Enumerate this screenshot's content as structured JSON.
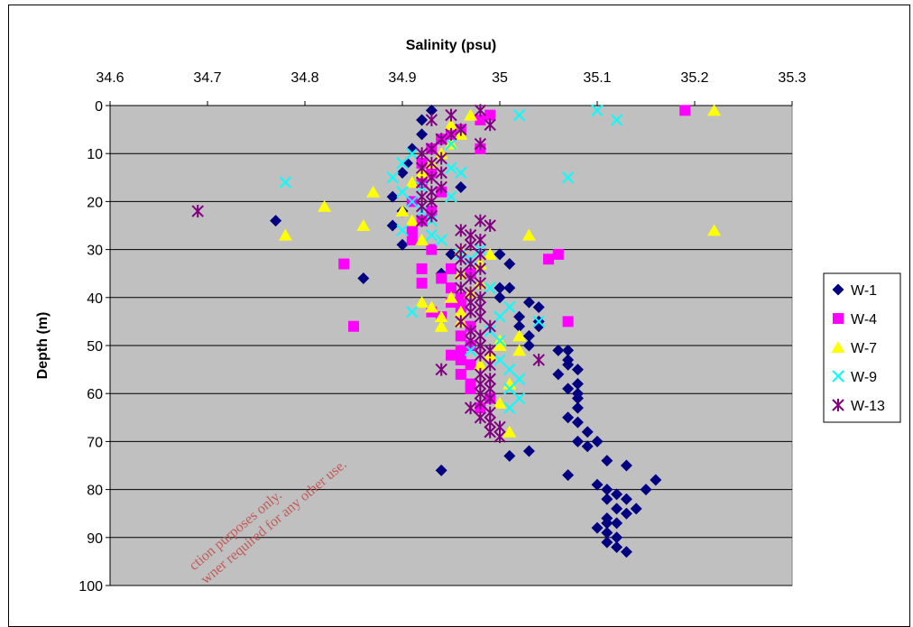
{
  "chart_data": {
    "type": "scatter",
    "title": "Salinity (psu)",
    "xlabel": "Salinity (psu)",
    "ylabel": "Depth (m)",
    "xlim": [
      34.6,
      35.3
    ],
    "ylim": [
      0,
      100
    ],
    "y_inverted": true,
    "x_axis_position": "top",
    "x_ticks": [
      "34.6",
      "34.7",
      "34.8",
      "34.9",
      "35",
      "35.1",
      "35.2",
      "35.3"
    ],
    "y_ticks": [
      "0",
      "10",
      "20",
      "30",
      "40",
      "50",
      "60",
      "70",
      "80",
      "90",
      "100"
    ],
    "grid": "horizontal",
    "plot_background": "#c0c0c0",
    "legend_position": "right",
    "series": [
      {
        "name": "W-1",
        "marker": "diamond",
        "color": "#000080",
        "points": [
          [
            34.93,
            1
          ],
          [
            34.92,
            3
          ],
          [
            34.92,
            6
          ],
          [
            34.91,
            9
          ],
          [
            34.905,
            12
          ],
          [
            34.9,
            14
          ],
          [
            34.96,
            17
          ],
          [
            34.89,
            19
          ],
          [
            34.9,
            22
          ],
          [
            34.89,
            25
          ],
          [
            34.77,
            24
          ],
          [
            34.9,
            29
          ],
          [
            34.95,
            31
          ],
          [
            35.0,
            31
          ],
          [
            35.01,
            33
          ],
          [
            34.94,
            35
          ],
          [
            34.86,
            36
          ],
          [
            35.0,
            38
          ],
          [
            35.01,
            38
          ],
          [
            35.03,
            41
          ],
          [
            35.0,
            40
          ],
          [
            35.04,
            42
          ],
          [
            35.02,
            44
          ],
          [
            35.04,
            45
          ],
          [
            35.04,
            46
          ],
          [
            35.02,
            46
          ],
          [
            35.03,
            48
          ],
          [
            35.03,
            50
          ],
          [
            35.06,
            51
          ],
          [
            35.07,
            51
          ],
          [
            35.07,
            53
          ],
          [
            35.07,
            54
          ],
          [
            35.08,
            55
          ],
          [
            35.06,
            56
          ],
          [
            35.08,
            58
          ],
          [
            35.07,
            59
          ],
          [
            35.08,
            60
          ],
          [
            35.08,
            61
          ],
          [
            35.08,
            63
          ],
          [
            35.07,
            65
          ],
          [
            35.08,
            66
          ],
          [
            35.09,
            68
          ],
          [
            35.08,
            70
          ],
          [
            35.09,
            71
          ],
          [
            35.1,
            70
          ],
          [
            35.03,
            72
          ],
          [
            35.01,
            73
          ],
          [
            35.11,
            74
          ],
          [
            35.13,
            75
          ],
          [
            34.94,
            76
          ],
          [
            35.07,
            77
          ],
          [
            35.16,
            78
          ],
          [
            35.15,
            80
          ],
          [
            35.1,
            79
          ],
          [
            35.11,
            80
          ],
          [
            35.12,
            81
          ],
          [
            35.11,
            82
          ],
          [
            35.13,
            82
          ],
          [
            35.12,
            84
          ],
          [
            35.14,
            84
          ],
          [
            35.13,
            85
          ],
          [
            35.11,
            86
          ],
          [
            35.11,
            87
          ],
          [
            35.12,
            87
          ],
          [
            35.1,
            88
          ],
          [
            35.11,
            89
          ],
          [
            35.12,
            90
          ],
          [
            35.11,
            91
          ],
          [
            35.12,
            92
          ],
          [
            35.13,
            93
          ]
        ]
      },
      {
        "name": "W-4",
        "marker": "square",
        "color": "#ff00ff",
        "points": [
          [
            35.19,
            1
          ],
          [
            34.99,
            2
          ],
          [
            34.98,
            3
          ],
          [
            34.96,
            5
          ],
          [
            34.95,
            6
          ],
          [
            34.94,
            7
          ],
          [
            34.98,
            9
          ],
          [
            34.93,
            9
          ],
          [
            34.92,
            12
          ],
          [
            34.93,
            14
          ],
          [
            34.92,
            16
          ],
          [
            34.94,
            18
          ],
          [
            34.91,
            20
          ],
          [
            34.93,
            22
          ],
          [
            34.92,
            24
          ],
          [
            34.91,
            26
          ],
          [
            34.91,
            28
          ],
          [
            34.93,
            30
          ],
          [
            35.06,
            31
          ],
          [
            35.05,
            32
          ],
          [
            34.84,
            33
          ],
          [
            34.92,
            34
          ],
          [
            34.95,
            34
          ],
          [
            34.97,
            35
          ],
          [
            34.94,
            36
          ],
          [
            34.92,
            37
          ],
          [
            34.95,
            38
          ],
          [
            34.96,
            40
          ],
          [
            34.95,
            41
          ],
          [
            34.96,
            42
          ],
          [
            34.93,
            43
          ],
          [
            34.94,
            44
          ],
          [
            35.07,
            45
          ],
          [
            34.85,
            46
          ],
          [
            34.97,
            46
          ],
          [
            34.96,
            48
          ],
          [
            34.97,
            50
          ],
          [
            34.96,
            51
          ],
          [
            34.95,
            52
          ],
          [
            34.96,
            53
          ],
          [
            34.97,
            54
          ],
          [
            34.96,
            56
          ],
          [
            34.97,
            58
          ],
          [
            34.97,
            59
          ],
          [
            34.99,
            61
          ],
          [
            34.98,
            63
          ]
        ]
      },
      {
        "name": "W-7",
        "marker": "triangle",
        "color": "#ffff00",
        "points": [
          [
            35.22,
            1
          ],
          [
            34.97,
            2
          ],
          [
            34.95,
            4
          ],
          [
            34.96,
            6
          ],
          [
            34.95,
            8
          ],
          [
            34.94,
            10
          ],
          [
            34.93,
            12
          ],
          [
            34.92,
            14
          ],
          [
            34.91,
            16
          ],
          [
            34.87,
            18
          ],
          [
            34.82,
            21
          ],
          [
            34.9,
            22
          ],
          [
            34.91,
            24
          ],
          [
            34.86,
            25
          ],
          [
            35.22,
            26
          ],
          [
            35.03,
            27
          ],
          [
            34.78,
            27
          ],
          [
            34.92,
            28
          ],
          [
            34.96,
            30
          ],
          [
            34.99,
            31
          ],
          [
            34.98,
            33
          ],
          [
            34.96,
            35
          ],
          [
            34.98,
            37
          ],
          [
            34.97,
            39
          ],
          [
            34.95,
            40
          ],
          [
            34.92,
            41
          ],
          [
            34.93,
            42
          ],
          [
            34.96,
            43
          ],
          [
            34.94,
            44
          ],
          [
            34.96,
            45
          ],
          [
            34.94,
            46
          ],
          [
            35.02,
            48
          ],
          [
            35.0,
            49
          ],
          [
            35.0,
            50
          ],
          [
            35.02,
            51
          ],
          [
            34.99,
            52
          ],
          [
            34.98,
            54
          ],
          [
            35.01,
            58
          ],
          [
            35.0,
            62
          ],
          [
            35.01,
            68
          ]
        ]
      },
      {
        "name": "W-9",
        "marker": "x",
        "color": "#00ffff",
        "points": [
          [
            35.1,
            1
          ],
          [
            35.02,
            2
          ],
          [
            35.12,
            3
          ],
          [
            34.96,
            5
          ],
          [
            34.95,
            8
          ],
          [
            34.91,
            10
          ],
          [
            34.9,
            12
          ],
          [
            34.95,
            13
          ],
          [
            34.96,
            14
          ],
          [
            35.07,
            15
          ],
          [
            34.89,
            15
          ],
          [
            34.78,
            16
          ],
          [
            34.92,
            17
          ],
          [
            34.9,
            18
          ],
          [
            34.95,
            19
          ],
          [
            34.91,
            20
          ],
          [
            34.92,
            22
          ],
          [
            34.93,
            24
          ],
          [
            34.9,
            26
          ],
          [
            34.93,
            27
          ],
          [
            34.94,
            28
          ],
          [
            34.98,
            30
          ],
          [
            34.96,
            31
          ],
          [
            34.97,
            32
          ],
          [
            34.98,
            34
          ],
          [
            34.97,
            36
          ],
          [
            34.99,
            38
          ],
          [
            34.98,
            40
          ],
          [
            35.01,
            42
          ],
          [
            34.91,
            43
          ],
          [
            35.0,
            44
          ],
          [
            35.04,
            45
          ],
          [
            34.99,
            47
          ],
          [
            35.0,
            49
          ],
          [
            34.97,
            51
          ],
          [
            35.0,
            53
          ],
          [
            35.01,
            55
          ],
          [
            35.02,
            57
          ],
          [
            35.01,
            59
          ],
          [
            35.02,
            61
          ],
          [
            35.01,
            63
          ]
        ]
      },
      {
        "name": "W-13",
        "marker": "asterisk",
        "color": "#800080",
        "points": [
          [
            34.98,
            1
          ],
          [
            34.95,
            2
          ],
          [
            34.93,
            3
          ],
          [
            34.99,
            4
          ],
          [
            34.96,
            5
          ],
          [
            34.95,
            6
          ],
          [
            34.94,
            7
          ],
          [
            34.98,
            8
          ],
          [
            34.93,
            9
          ],
          [
            34.92,
            10
          ],
          [
            34.94,
            11
          ],
          [
            34.93,
            12
          ],
          [
            34.92,
            13
          ],
          [
            34.94,
            14
          ],
          [
            34.93,
            15
          ],
          [
            34.92,
            16
          ],
          [
            34.94,
            17
          ],
          [
            34.93,
            18
          ],
          [
            34.92,
            19
          ],
          [
            34.93,
            20
          ],
          [
            34.92,
            21
          ],
          [
            34.69,
            22
          ],
          [
            34.93,
            23
          ],
          [
            34.92,
            24
          ],
          [
            34.98,
            24
          ],
          [
            34.99,
            25
          ],
          [
            34.96,
            26
          ],
          [
            34.97,
            27
          ],
          [
            34.98,
            28
          ],
          [
            34.97,
            29
          ],
          [
            34.96,
            30
          ],
          [
            34.98,
            31
          ],
          [
            34.96,
            32
          ],
          [
            34.97,
            33
          ],
          [
            34.98,
            34
          ],
          [
            34.96,
            35
          ],
          [
            34.97,
            36
          ],
          [
            34.98,
            37
          ],
          [
            34.96,
            38
          ],
          [
            34.97,
            39
          ],
          [
            34.98,
            40
          ],
          [
            34.97,
            41
          ],
          [
            34.98,
            42
          ],
          [
            34.97,
            43
          ],
          [
            34.98,
            44
          ],
          [
            34.96,
            45
          ],
          [
            34.99,
            46
          ],
          [
            34.97,
            47
          ],
          [
            34.98,
            48
          ],
          [
            34.97,
            49
          ],
          [
            34.98,
            50
          ],
          [
            34.99,
            51
          ],
          [
            34.98,
            52
          ],
          [
            35.04,
            53
          ],
          [
            34.99,
            54
          ],
          [
            34.94,
            55
          ],
          [
            34.98,
            56
          ],
          [
            34.99,
            57
          ],
          [
            34.98,
            58
          ],
          [
            34.99,
            59
          ],
          [
            34.98,
            60
          ],
          [
            34.99,
            61
          ],
          [
            34.98,
            62
          ],
          [
            34.97,
            63
          ],
          [
            34.99,
            64
          ],
          [
            34.98,
            65
          ],
          [
            34.99,
            66
          ],
          [
            35.0,
            67
          ],
          [
            34.99,
            68
          ],
          [
            35.0,
            69
          ]
        ]
      }
    ]
  },
  "watermark": {
    "line1": "ction purposes only.",
    "line2": "wner required for any other use."
  }
}
